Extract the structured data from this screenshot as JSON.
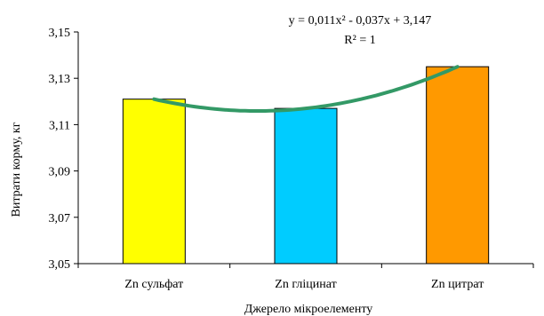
{
  "chart_data": {
    "type": "bar",
    "categories": [
      "Zn сульфат",
      "Zn гліцинат",
      "Zn цитрат"
    ],
    "values": [
      3.121,
      3.117,
      3.135
    ],
    "colors": [
      "#ffff00",
      "#00ccff",
      "#ff9900"
    ],
    "xlabel": "Джерело мікроелементу",
    "ylabel": "Витрати корму, кг",
    "ylim": [
      3.05,
      3.15
    ],
    "yticks": [
      "3,05",
      "3,07",
      "3,09",
      "3,11",
      "3,13",
      "3,15"
    ],
    "grid": false,
    "trendline": {
      "type": "polynomial",
      "order": 2,
      "color": "#339966",
      "equation": "y = 0,011x² - 0,037x + 3,147",
      "r_squared": "R² = 1",
      "coefficients": [
        0.011,
        -0.037,
        3.147
      ]
    }
  }
}
